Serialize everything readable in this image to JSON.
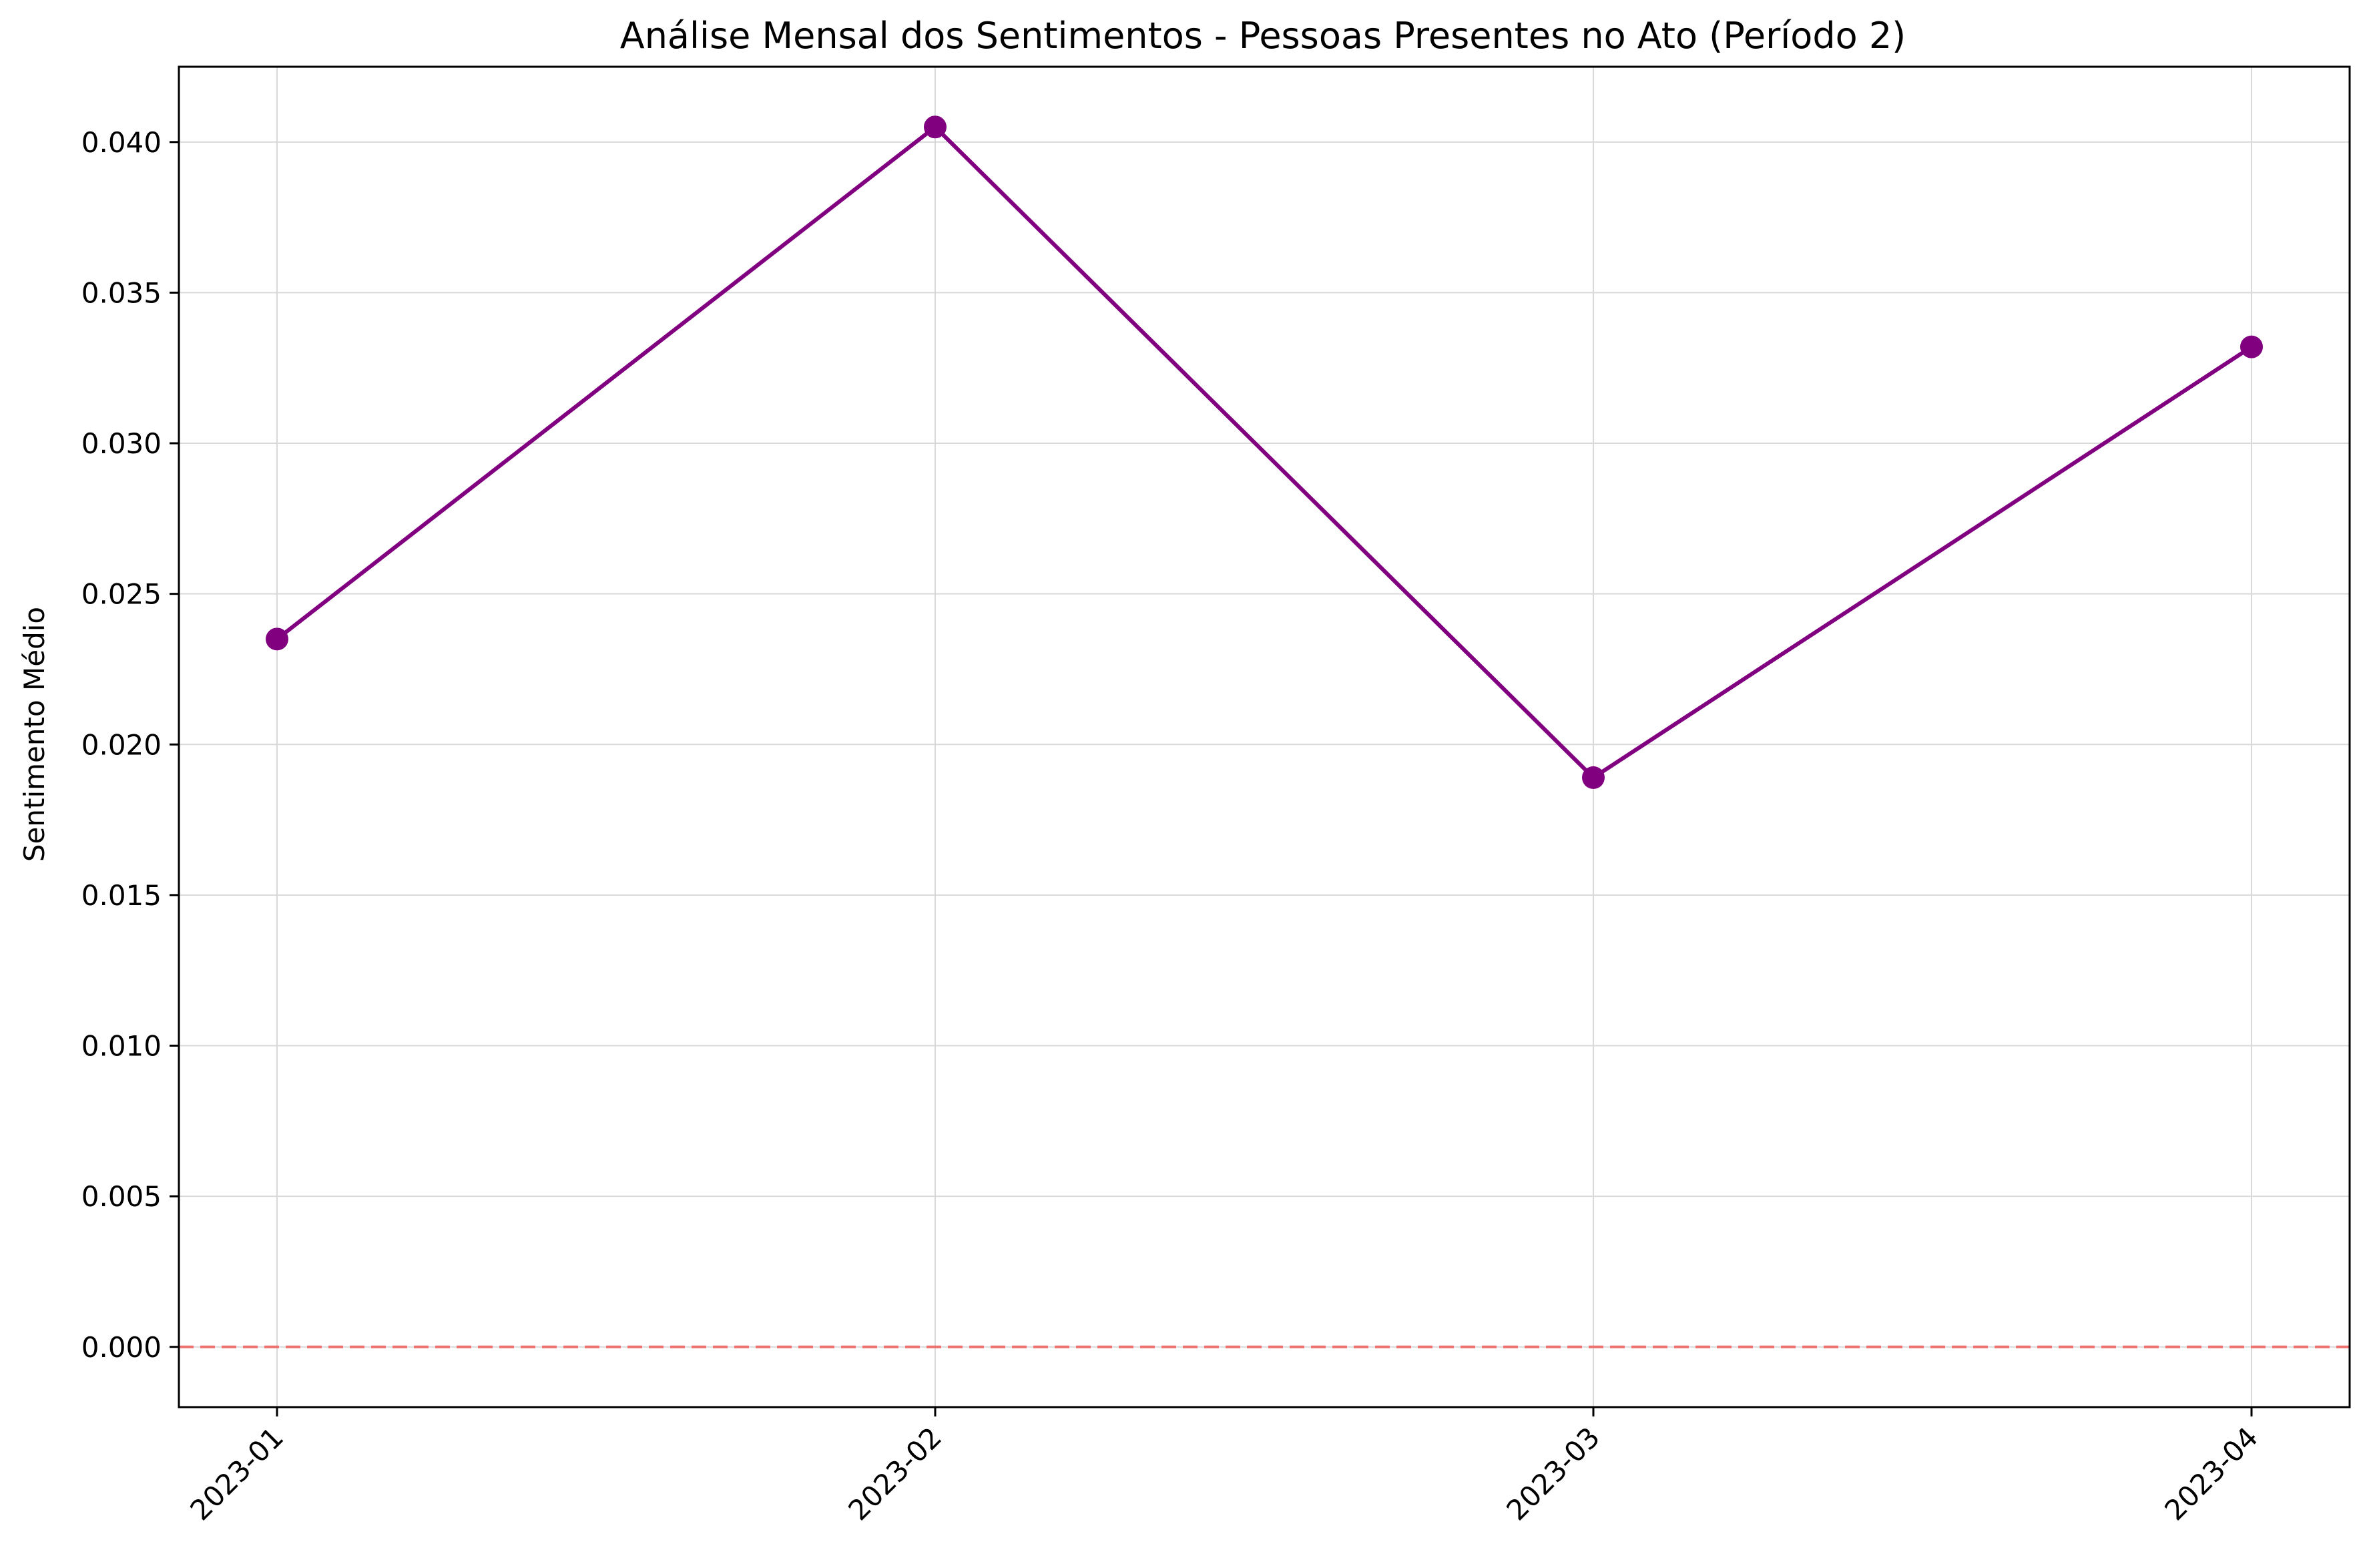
{
  "chart_data": {
    "type": "line",
    "title": "Análise Mensal dos Sentimentos - Pessoas Presentes no Ato (Período 2)",
    "xlabel": "",
    "ylabel": "Sentimento Médio",
    "categories": [
      "2023-01",
      "2023-02",
      "2023-03",
      "2023-04"
    ],
    "series": [
      {
        "values": [
          0.0235,
          0.0405,
          0.0189,
          0.0332
        ]
      }
    ],
    "ylim": [
      -0.002,
      0.0425
    ],
    "yticks": [
      0.0,
      0.005,
      0.01,
      0.015,
      0.02,
      0.025,
      0.03,
      0.035,
      0.04
    ],
    "ytick_labels": [
      "0.000",
      "0.005",
      "0.010",
      "0.015",
      "0.020",
      "0.025",
      "0.030",
      "0.035",
      "0.040"
    ],
    "reference_line": {
      "y": 0.0,
      "style": "dashed",
      "color": "#f07070"
    },
    "grid": true,
    "line_color": "#800080",
    "marker": "circle"
  }
}
